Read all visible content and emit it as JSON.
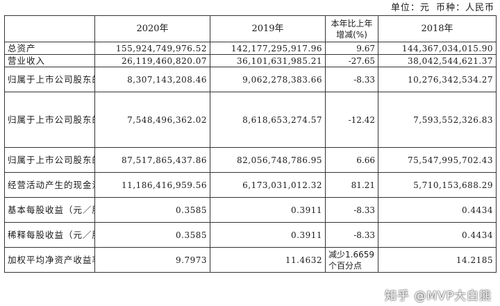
{
  "header": {
    "unit_label": "单位：元",
    "currency_label": "币种：人民币"
  },
  "table": {
    "columns": [
      "",
      "2020年",
      "2019年",
      "本年比上年\n增减(%)",
      "2018年"
    ],
    "rows": [
      {
        "label": "总资产",
        "y2020": "155,924,749,976.52",
        "y2019": "142,177,295,917.96",
        "change": "9.67",
        "y2018": "144,367,034,015.90"
      },
      {
        "label": "营业收入",
        "y2020": "26,119,460,820.07",
        "y2019": "36,101,631,985.21",
        "change": "-27.65",
        "y2018": "38,042,544,621.37"
      },
      {
        "label": "归属于上市公司股东的净利润",
        "y2020": "8,307,143,208.46",
        "y2019": "9,062,278,383.66",
        "change": "-8.33",
        "y2018": "10,276,342,534.27"
      },
      {
        "label": "归属于上市公司股东的扣除非经常性损益的净利润",
        "y2020": "7,548,496,362.02",
        "y2019": "8,618,653,274.57",
        "change": "-12.42",
        "y2018": "7,593,552,326.83"
      },
      {
        "label": "归属于上市公司股东的净资产",
        "y2020": "87,517,865,437.86",
        "y2019": "82,056,748,786.95",
        "change": "6.66",
        "y2018": "75,547,995,702.43"
      },
      {
        "label": "经营活动产生的现金流量净额",
        "y2020": "11,186,416,959.56",
        "y2019": "6,173,031,012.32",
        "change": "81.21",
        "y2018": "5,710,153,688.29"
      },
      {
        "label": "基本每股收益（元／股）",
        "y2020": "0.3585",
        "y2019": "0.3911",
        "change": "-8.33",
        "y2018": "0.4434"
      },
      {
        "label": "稀释每股收益（元／股）",
        "y2020": "0.3585",
        "y2019": "0.3911",
        "change": "-8.33",
        "y2018": "0.4434"
      },
      {
        "label": "加权平均净资产收益率（%）",
        "y2020": "9.7973",
        "y2019": "11.4632",
        "change": "减少1.6659个百分点",
        "y2018": "14.2185"
      }
    ]
  },
  "watermark": "知乎 @MVP大白熊"
}
